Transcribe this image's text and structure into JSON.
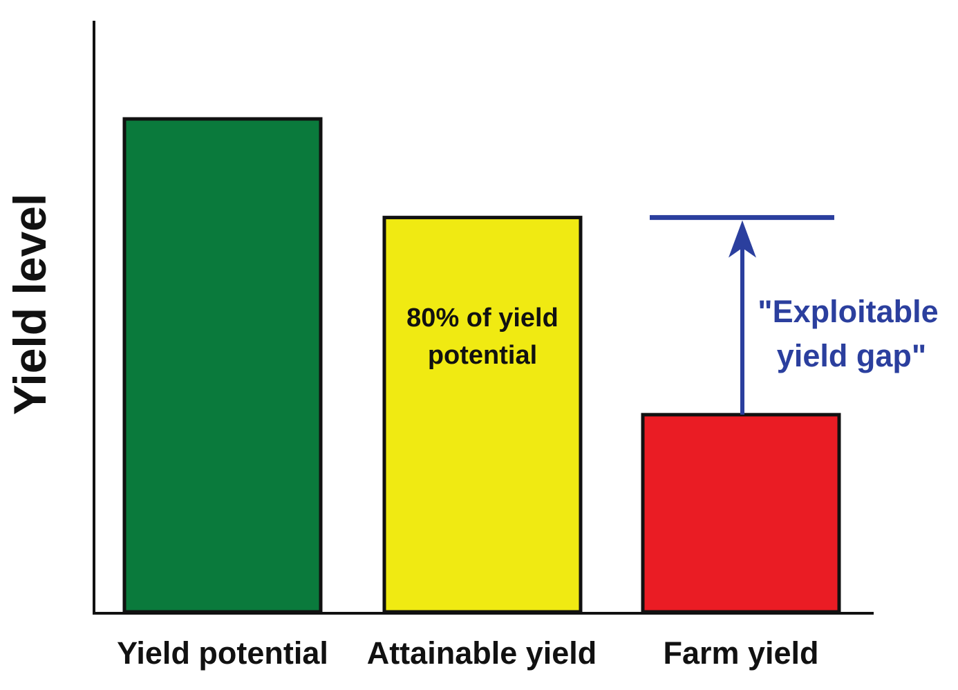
{
  "chart_data": {
    "type": "bar",
    "ylabel": "Yield level",
    "xlabel": "",
    "title": "",
    "ylim": [
      0,
      100
    ],
    "categories": [
      "Yield potential",
      "Attainable yield",
      "Farm yield"
    ],
    "values": [
      100,
      80,
      40
    ],
    "colors": [
      "#0a7a3c",
      "#f0ea12",
      "#ea1c24"
    ],
    "bar_annotations": [
      {
        "category": "Attainable yield",
        "lines": [
          "80% of yield",
          "potential"
        ]
      }
    ],
    "gap_annotation": {
      "lines": [
        "\"Exploitable",
        "yield gap\""
      ],
      "from_value": 40,
      "to_value": 80,
      "color": "#2b3f9e"
    },
    "axis_color": "#111111",
    "grid": false
  }
}
